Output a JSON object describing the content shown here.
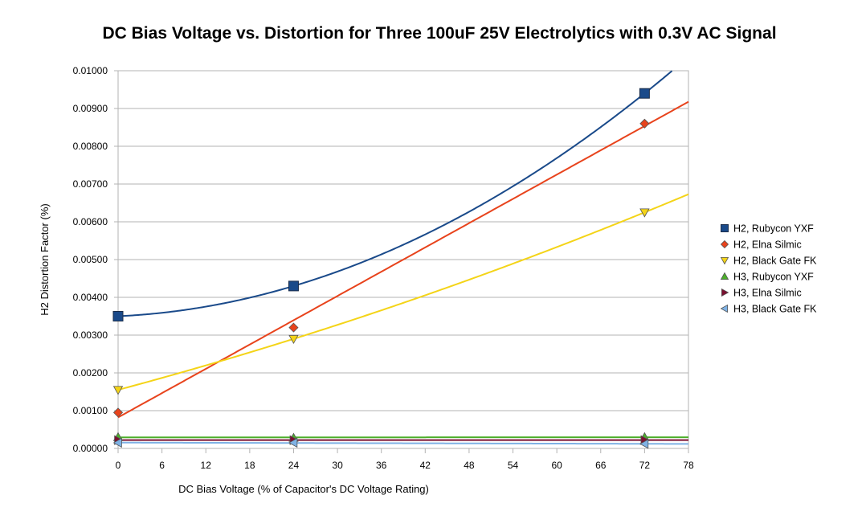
{
  "chart_data": {
    "type": "scatter",
    "title": "DC Bias Voltage vs. Distortion for Three 100uF 25V Electrolytics with 0.3V AC Signal",
    "xlabel": "DC Bias Voltage (% of Capacitor's DC Voltage Rating)",
    "ylabel": "H2 Distortion Factor (%)",
    "xlim": [
      0,
      78
    ],
    "ylim": [
      0,
      0.01
    ],
    "x_ticks": [
      "0",
      "6",
      "12",
      "18",
      "24",
      "30",
      "36",
      "42",
      "48",
      "54",
      "60",
      "66",
      "72",
      "78"
    ],
    "y_ticks": [
      "0.00000",
      "0.00100",
      "0.00200",
      "0.00300",
      "0.00400",
      "0.00500",
      "0.00600",
      "0.00700",
      "0.00800",
      "0.00900",
      "0.01000"
    ],
    "grid": true,
    "legend_position": "right",
    "series": [
      {
        "name": "H2, Rubycon YXF",
        "x": [
          0,
          24,
          72
        ],
        "y": [
          0.0035,
          0.0043,
          0.0094
        ],
        "marker": "square",
        "color": "#1a4a8a",
        "trendline": "polynomial"
      },
      {
        "name": "H2, Elna Silmic",
        "x": [
          0,
          24,
          72
        ],
        "y": [
          0.00095,
          0.0032,
          0.0086
        ],
        "marker": "diamond",
        "color": "#e8431c",
        "trendline": "linear"
      },
      {
        "name": "H2, Black Gate FK",
        "x": [
          0,
          24,
          72
        ],
        "y": [
          0.00155,
          0.0029,
          0.00625
        ],
        "marker": "triangle-down",
        "color": "#f4d418",
        "trendline": "polynomial"
      },
      {
        "name": "H3, Rubycon YXF",
        "x": [
          0,
          24,
          72
        ],
        "y": [
          0.0003,
          0.00028,
          0.0003
        ],
        "marker": "triangle-up",
        "color": "#4caf2a",
        "trendline": "linear"
      },
      {
        "name": "H3, Elna Silmic",
        "x": [
          0,
          24,
          72
        ],
        "y": [
          0.00022,
          0.00022,
          0.00022
        ],
        "marker": "triangle-right",
        "color": "#7a1030",
        "trendline": "linear"
      },
      {
        "name": "H3, Black Gate FK",
        "x": [
          0,
          24,
          72
        ],
        "y": [
          0.00015,
          0.00015,
          0.00012
        ],
        "marker": "triangle-left",
        "color": "#7fb2e5",
        "trendline": "linear"
      }
    ]
  }
}
